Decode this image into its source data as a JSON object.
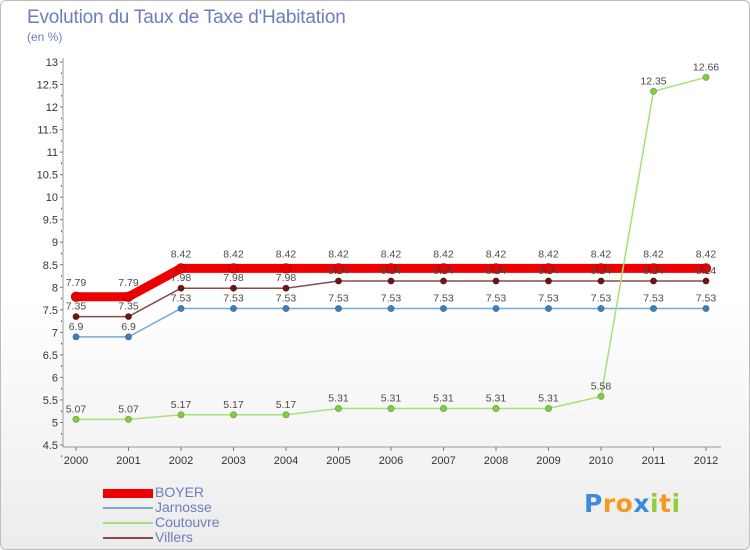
{
  "title": "Evolution du Taux de Taxe d'Habitation",
  "unit": "(en %)",
  "chart_data": {
    "type": "line",
    "title": "Evolution du Taux de Taxe d'Habitation",
    "subtitle": "(en %)",
    "categories": [
      "2000",
      "2001",
      "2002",
      "2003",
      "2004",
      "2005",
      "2006",
      "2007",
      "2008",
      "2009",
      "2010",
      "2011",
      "2012"
    ],
    "ylim": [
      4.5,
      13
    ],
    "yticks": [
      4.5,
      5,
      5.5,
      6,
      6.5,
      7,
      7.5,
      8,
      8.5,
      9,
      9.5,
      10,
      10.5,
      11,
      11.5,
      12,
      12.5,
      13
    ],
    "ytick_labels": [
      "4.5",
      "5",
      "5.5",
      "6",
      "6.5",
      "7",
      "7.5",
      "8",
      "8.5",
      "9",
      "9.5",
      "10",
      "10.5",
      "11",
      "11.5",
      "12",
      "12.5",
      "13"
    ],
    "grid": false,
    "legend_position": "bottom-left",
    "series": [
      {
        "name": "BOYER",
        "color": "#ee0000",
        "marker_color": "#e60000",
        "values": [
          7.79,
          7.79,
          8.42,
          8.42,
          8.42,
          8.42,
          8.42,
          8.42,
          8.42,
          8.42,
          8.42,
          8.42,
          8.42
        ],
        "labels": [
          "7.79",
          "7.79",
          "8.42",
          "8.42",
          "8.42",
          "8.42",
          "8.42",
          "8.42",
          "8.42",
          "8.42",
          "8.42",
          "8.42",
          "8.42"
        ]
      },
      {
        "name": "Jarnosse",
        "color": "#7aa7cf",
        "marker_color": "#3c7fc0",
        "values": [
          6.9,
          6.9,
          7.53,
          7.53,
          7.53,
          7.53,
          7.53,
          7.53,
          7.53,
          7.53,
          7.53,
          7.53,
          7.53
        ],
        "labels": [
          "6.9",
          "6.9",
          "7.53",
          "7.53",
          "7.53",
          "7.53",
          "7.53",
          "7.53",
          "7.53",
          "7.53",
          "7.53",
          "7.53",
          "7.53"
        ]
      },
      {
        "name": "Coutouvre",
        "color": "#a6e07a",
        "marker_color": "#7bd03c",
        "values": [
          5.07,
          5.07,
          5.17,
          5.17,
          5.17,
          5.31,
          5.31,
          5.31,
          5.31,
          5.31,
          5.58,
          12.35,
          12.66
        ],
        "labels": [
          "5.07",
          "5.07",
          "5.17",
          "5.17",
          "5.17",
          "5.31",
          "5.31",
          "5.31",
          "5.31",
          "5.31",
          "5.58",
          "12.35",
          "12.66"
        ]
      },
      {
        "name": "Villers",
        "color": "#8b4a4a",
        "marker_color": "#6e1414",
        "values": [
          7.35,
          7.35,
          7.98,
          7.98,
          7.98,
          8.14,
          8.14,
          8.14,
          8.14,
          8.14,
          8.14,
          8.14,
          8.14
        ],
        "labels": [
          "7.35",
          "7.35",
          "7.98",
          "7.98",
          "7.98",
          "8.14",
          "8.14",
          "8.14",
          "8.14",
          "8.14",
          "8.14",
          "8.14",
          "8.14"
        ]
      }
    ]
  },
  "logo": {
    "letters": [
      "P",
      "r",
      "o",
      "x",
      "i",
      "t",
      "i"
    ],
    "colors": [
      "#3a8ddb",
      "#f39a1f",
      "#f39a1f",
      "#3a8ddb",
      "#8fcf3a",
      "#f39a1f",
      "#8fcf3a"
    ]
  }
}
